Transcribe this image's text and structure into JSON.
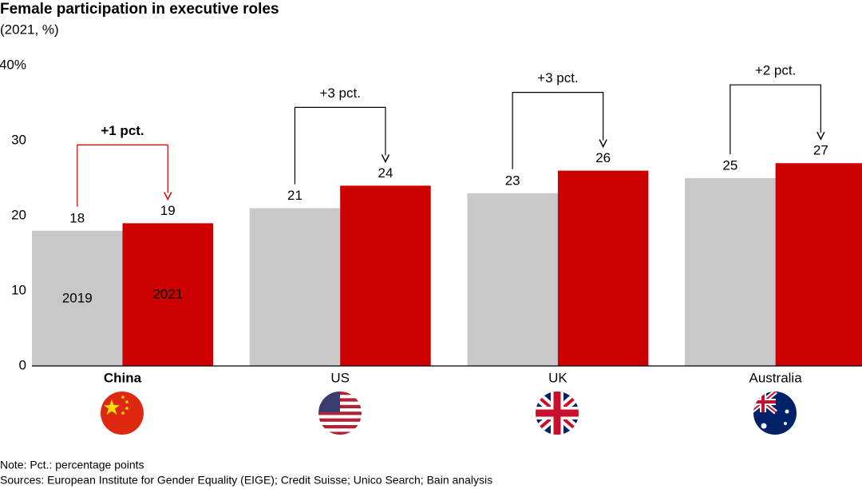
{
  "chart_data": {
    "type": "bar",
    "title": "Female participation in executive roles",
    "subtitle": "(2021, %)",
    "categories": [
      "China",
      "US",
      "UK",
      "Australia"
    ],
    "highlight": 0,
    "series": [
      {
        "name": "2019",
        "color": "#c8c8c8",
        "label_color": "#000000",
        "values": [
          18,
          21,
          23,
          25
        ]
      },
      {
        "name": "2021",
        "color": "#cc0000",
        "label_color": "#ffffff",
        "values": [
          19,
          24,
          26,
          27
        ]
      }
    ],
    "annotations": [
      {
        "text": "+1 pct.",
        "color": "#cc0000"
      },
      {
        "text": "+3 pct.",
        "color": "#000000"
      },
      {
        "text": "+3 pct.",
        "color": "#000000"
      },
      {
        "text": "+2 pct.",
        "color": "#000000"
      }
    ],
    "ylim": [
      0,
      40
    ],
    "yticks": [
      0,
      10,
      20,
      30,
      {
        "value": 40,
        "label": "40%"
      }
    ],
    "note": "Note: Pct.: percentage points",
    "sources": "Sources: European Institute for Gender Equality (EIGE); Credit Suisse; Unico Search; Bain analysis"
  }
}
